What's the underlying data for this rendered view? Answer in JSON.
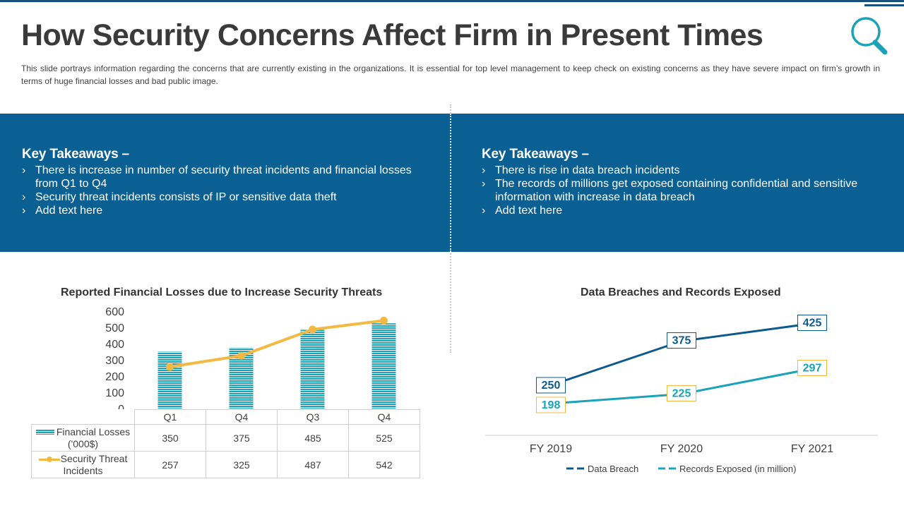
{
  "header": {
    "title": "How Security Concerns Affect Firm in Present Times",
    "subtitle": "This slide portrays information regarding the concerns that are currently existing in the organizations. It is essential for top level management to keep check on existing concerns as they have severe impact on firm’s growth in terms of huge financial losses and bad public image."
  },
  "icons": {
    "header_icon": "search-icon",
    "bullet_icon": "chevron-right-icon",
    "bullet_glyph": "›"
  },
  "colors": {
    "band": "#0a5f93",
    "bar": "#1aa3b8",
    "threat_line": "#f4b942",
    "breach_line": "#0d5a8c",
    "records_line": "#1aa3b8",
    "records_label_border": "#f4b942",
    "title": "#3a3a3a"
  },
  "takeaways_left": {
    "heading": "Key Takeaways –",
    "items": [
      "There is increase in number of security threat incidents and financial losses from Q1 to Q4",
      "Security threat incidents consists of IP or sensitive data theft",
      "Add text here"
    ]
  },
  "takeaways_right": {
    "heading": "Key Takeaways –",
    "items": [
      "There is rise in data breach incidents",
      "The records of millions get exposed containing confidential and sensitive information with increase in data breach",
      "Add text here"
    ]
  },
  "chart_data": [
    {
      "type": "bar",
      "title": "Reported Financial Losses due to Increase Security Threats",
      "categories": [
        "Q1",
        "Q4",
        "Q3",
        "Q4"
      ],
      "ylim": [
        0,
        600
      ],
      "yticks": [
        0,
        100,
        200,
        300,
        400,
        500,
        600
      ],
      "xlabel": "",
      "ylabel": "",
      "grid": false,
      "legend": "data-table",
      "series": [
        {
          "name": "Financial Losses ('000$)",
          "kind": "bar",
          "values": [
            350,
            375,
            485,
            525
          ]
        },
        {
          "name": "Security Threat Incidents",
          "kind": "line",
          "values": [
            257,
            325,
            487,
            542
          ]
        }
      ]
    },
    {
      "type": "line",
      "title": "Data Breaches and Records Exposed",
      "categories": [
        "FY 2019",
        "FY 2020",
        "FY 2021"
      ],
      "xlabel": "",
      "ylabel": "",
      "grid": false,
      "legend": "bottom",
      "series": [
        {
          "name": "Data Breach",
          "values": [
            250,
            375,
            425
          ],
          "labels": [
            "250",
            "375",
            "425"
          ]
        },
        {
          "name": "Records Exposed (in million)",
          "values": [
            198,
            225,
            297
          ],
          "labels": [
            "198",
            "225",
            "297"
          ]
        }
      ]
    }
  ]
}
